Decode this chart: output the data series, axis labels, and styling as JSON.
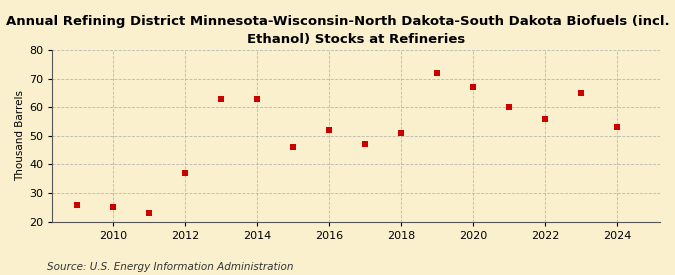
{
  "title": "Annual Refining District Minnesota-Wisconsin-North Dakota-South Dakota Biofuels (incl. Fuel\nEthanol) Stocks at Refineries",
  "ylabel": "Thousand Barrels",
  "source": "Source: U.S. Energy Information Administration",
  "years": [
    2009,
    2010,
    2011,
    2012,
    2013,
    2014,
    2015,
    2016,
    2017,
    2018,
    2019,
    2020,
    2021,
    2022,
    2023,
    2024
  ],
  "values": [
    26,
    25,
    23,
    37,
    63,
    63,
    46,
    52,
    47,
    51,
    72,
    67,
    60,
    56,
    65,
    53
  ],
  "ylim": [
    20,
    80
  ],
  "yticks": [
    20,
    30,
    40,
    50,
    60,
    70,
    80
  ],
  "xticks": [
    2010,
    2012,
    2014,
    2016,
    2018,
    2020,
    2022,
    2024
  ],
  "xlim": [
    2008.3,
    2025.2
  ],
  "marker_color": "#CC0000",
  "marker": "s",
  "marker_size": 4,
  "background_color": "#FAF0CE",
  "grid_color": "#AAAAAA",
  "title_fontsize": 9.5,
  "label_fontsize": 7.5,
  "tick_fontsize": 8,
  "source_fontsize": 7.5
}
